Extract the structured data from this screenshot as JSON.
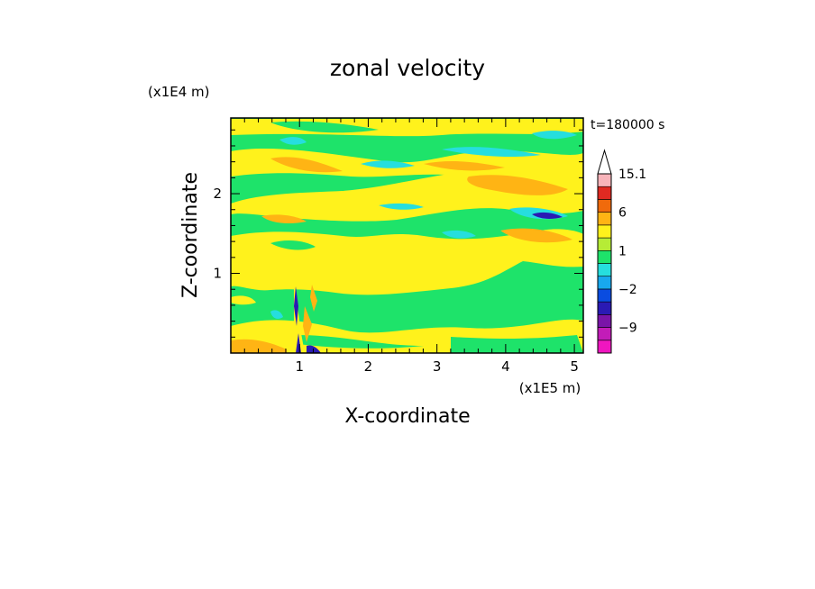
{
  "chart_data": {
    "type": "heatmap",
    "title": "zonal velocity",
    "xlabel": "X-coordinate",
    "ylabel": "Z-coordinate",
    "x_unit": "(x1E5 m)",
    "y_unit": "(x1E4 m)",
    "time_label": "t=180000 s",
    "xlim": [
      0,
      5.13
    ],
    "ylim": [
      0,
      2.95
    ],
    "x_ticks": [
      1,
      2,
      3,
      4,
      5
    ],
    "y_ticks": [
      1,
      2
    ],
    "x_tick_labels": [
      "1",
      "2",
      "3",
      "4",
      "5"
    ],
    "y_tick_labels": [
      "1",
      "2"
    ],
    "colorbar": {
      "levels": [
        -15,
        -12,
        -9,
        -6,
        -3,
        -2,
        -1,
        0,
        1,
        2,
        3,
        6,
        9,
        12,
        15.1
      ],
      "tick_values": [
        15.1,
        6,
        1,
        -2,
        -9
      ],
      "tick_labels": [
        "15.1",
        "6",
        "1",
        "−2",
        "−9"
      ],
      "colors": [
        "#f016c0",
        "#c21cb8",
        "#7a14a8",
        "#2a1ab4",
        "#0a4ce0",
        "#18a8ee",
        "#26dede",
        "#1ee36a",
        "#b6ec36",
        "#fff21c",
        "#ffb414",
        "#f06a0c",
        "#e02a22",
        "#f8b4ba"
      ],
      "extend_max": true
    },
    "background_level_color": "#1ee36a",
    "features": [
      {
        "name": "jet-low",
        "kind": "blob",
        "cx": 3.0,
        "cy": 2.4,
        "rx": 0.9,
        "ry": 0.18,
        "color": "#fff21c"
      },
      {
        "name": "jet-high",
        "kind": "blob",
        "cx": 4.0,
        "cy": 2.05,
        "rx": 0.8,
        "ry": 0.2,
        "color": "#fff21c"
      },
      {
        "name": "core-1",
        "kind": "blob",
        "cx": 4.3,
        "cy": 2.0,
        "rx": 0.5,
        "ry": 0.07,
        "color": "#ffb414"
      },
      {
        "name": "core-2",
        "kind": "blob",
        "cx": 3.0,
        "cy": 2.3,
        "rx": 0.3,
        "ry": 0.05,
        "color": "#ffb414"
      },
      {
        "name": "min-1",
        "kind": "blob",
        "cx": 4.55,
        "cy": 1.73,
        "rx": 0.2,
        "ry": 0.04,
        "color": "#2a1ab4"
      },
      {
        "name": "min-2",
        "kind": "blob",
        "cx": 3.6,
        "cy": 2.5,
        "rx": 0.5,
        "ry": 0.08,
        "color": "#26dede"
      }
    ]
  }
}
